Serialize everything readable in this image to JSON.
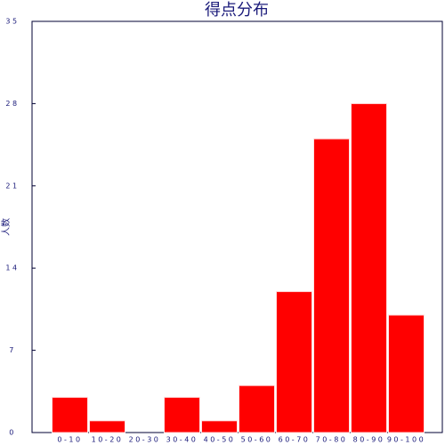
{
  "chart_data": {
    "type": "bar",
    "title": "得点分布",
    "y_label": "人数",
    "categories": [
      "0-10",
      "10-20",
      "20-30",
      "30-40",
      "40-50",
      "50-60",
      "60-70",
      "70-80",
      "80-90",
      "90-100"
    ],
    "values": [
      3,
      1,
      0,
      3,
      1,
      4,
      12,
      25,
      28,
      10
    ],
    "color": "#ff0000",
    "ylim": [
      0,
      35
    ],
    "yticks": [
      0,
      7,
      14,
      21,
      28,
      35
    ]
  }
}
